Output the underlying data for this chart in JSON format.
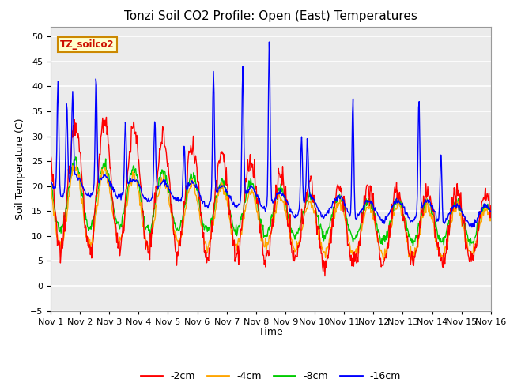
{
  "title": "Tonzi Soil CO2 Profile: Open (East) Temperatures",
  "ylabel": "Soil Temperature (C)",
  "xlabel": "Time",
  "label_box": "TZ_soilco2",
  "ylim": [
    -5,
    52
  ],
  "yticks": [
    -5,
    0,
    5,
    10,
    15,
    20,
    25,
    30,
    35,
    40,
    45,
    50
  ],
  "xtick_labels": [
    "Nov 1",
    "Nov 2",
    "Nov 3",
    "Nov 4",
    "Nov 5",
    "Nov 6",
    "Nov 7",
    "Nov 8",
    "Nov 9",
    "Nov 10",
    "Nov 11",
    "Nov 12",
    "Nov 13",
    "Nov 14",
    "Nov 15",
    "Nov 16"
  ],
  "series_colors": [
    "#ff0000",
    "#ffa500",
    "#00cc00",
    "#0000ff"
  ],
  "series_labels": [
    "-2cm",
    "-4cm",
    "-8cm",
    "-16cm"
  ],
  "line_width": 1.0,
  "plot_bg_color": "#ebebeb",
  "grid_color": "#ffffff",
  "title_fontsize": 11,
  "legend_fontsize": 9,
  "tick_fontsize": 8
}
